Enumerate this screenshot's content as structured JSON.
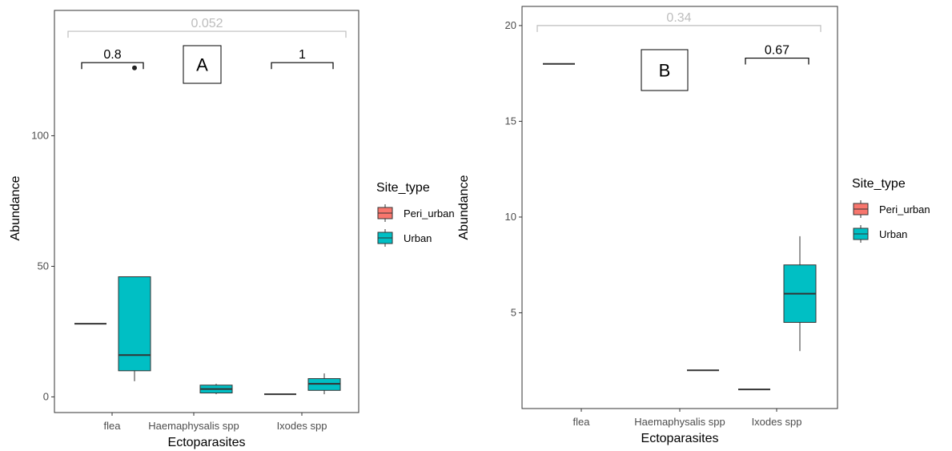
{
  "colors": {
    "peri_urban": "#F8766D",
    "urban": "#00BFC4",
    "bracket_grey": "#bdbdbd"
  },
  "legend": {
    "title": "Site_type",
    "items": [
      {
        "label": "Peri_urban",
        "color": "#F8766D"
      },
      {
        "label": "Urban",
        "color": "#00BFC4"
      }
    ]
  },
  "chart_data": [
    {
      "panel": "A",
      "type": "box",
      "xlabel": "Ectoparasites",
      "ylabel": "Abundance",
      "categories": [
        "flea",
        "Haemaphysalis spp",
        "Ixodes spp"
      ],
      "yticks": [
        0,
        50,
        100
      ],
      "ylim": [
        -6,
        148
      ],
      "groups": [
        "Peri_urban",
        "Urban"
      ],
      "boxes": [
        {
          "category": "flea",
          "group": "Peri_urban",
          "min": 28,
          "q1": 28,
          "median": 28,
          "q3": 28,
          "max": 28
        },
        {
          "category": "flea",
          "group": "Urban",
          "min": 6,
          "q1": 10,
          "median": 16,
          "q3": 46,
          "max": 46
        },
        {
          "category": "Haemaphysalis spp",
          "group": "Urban",
          "min": 1,
          "q1": 1.5,
          "median": 3,
          "q3": 4.5,
          "max": 5
        },
        {
          "category": "Ixodes spp",
          "group": "Peri_urban",
          "min": 1,
          "q1": 1,
          "median": 1,
          "q3": 1,
          "max": 1
        },
        {
          "category": "Ixodes spp",
          "group": "Urban",
          "min": 1,
          "q1": 2.5,
          "median": 5,
          "q3": 7,
          "max": 9
        }
      ],
      "outliers": [
        {
          "category": "flea",
          "group": "Urban",
          "value": 126
        }
      ],
      "comparisons": [
        {
          "label": "0.052",
          "from": "flea",
          "to": "Ixodes spp",
          "y": 140,
          "style": "grey"
        },
        {
          "label": "0.8",
          "from": "flea",
          "to": "flea",
          "y": 128,
          "style": "black"
        },
        {
          "label": "1",
          "from": "Ixodes spp",
          "to": "Ixodes spp",
          "y": 128,
          "style": "black"
        }
      ]
    },
    {
      "panel": "B",
      "type": "box",
      "xlabel": "Ectoparasites",
      "ylabel": "Abundance",
      "categories": [
        "flea",
        "Haemaphysalis spp",
        "Ixodes spp"
      ],
      "yticks": [
        5,
        10,
        15,
        20
      ],
      "ylim": [
        0,
        21
      ],
      "groups": [
        "Peri_urban",
        "Urban"
      ],
      "boxes": [
        {
          "category": "flea",
          "group": "Peri_urban",
          "min": 18,
          "q1": 18,
          "median": 18,
          "q3": 18,
          "max": 18
        },
        {
          "category": "Haemaphysalis spp",
          "group": "Urban",
          "min": 2,
          "q1": 2,
          "median": 2,
          "q3": 2,
          "max": 2
        },
        {
          "category": "Ixodes spp",
          "group": "Peri_urban",
          "min": 1,
          "q1": 1,
          "median": 1,
          "q3": 1,
          "max": 1
        },
        {
          "category": "Ixodes spp",
          "group": "Urban",
          "min": 3,
          "q1": 4.5,
          "median": 6,
          "q3": 7.5,
          "max": 9
        }
      ],
      "outliers": [],
      "comparisons": [
        {
          "label": "0.34",
          "from": "flea",
          "to": "Ixodes spp",
          "y": 20,
          "style": "grey"
        },
        {
          "label": "0.67",
          "from": "Ixodes spp",
          "to": "Ixodes spp",
          "y": 18.3,
          "style": "black"
        }
      ]
    }
  ]
}
